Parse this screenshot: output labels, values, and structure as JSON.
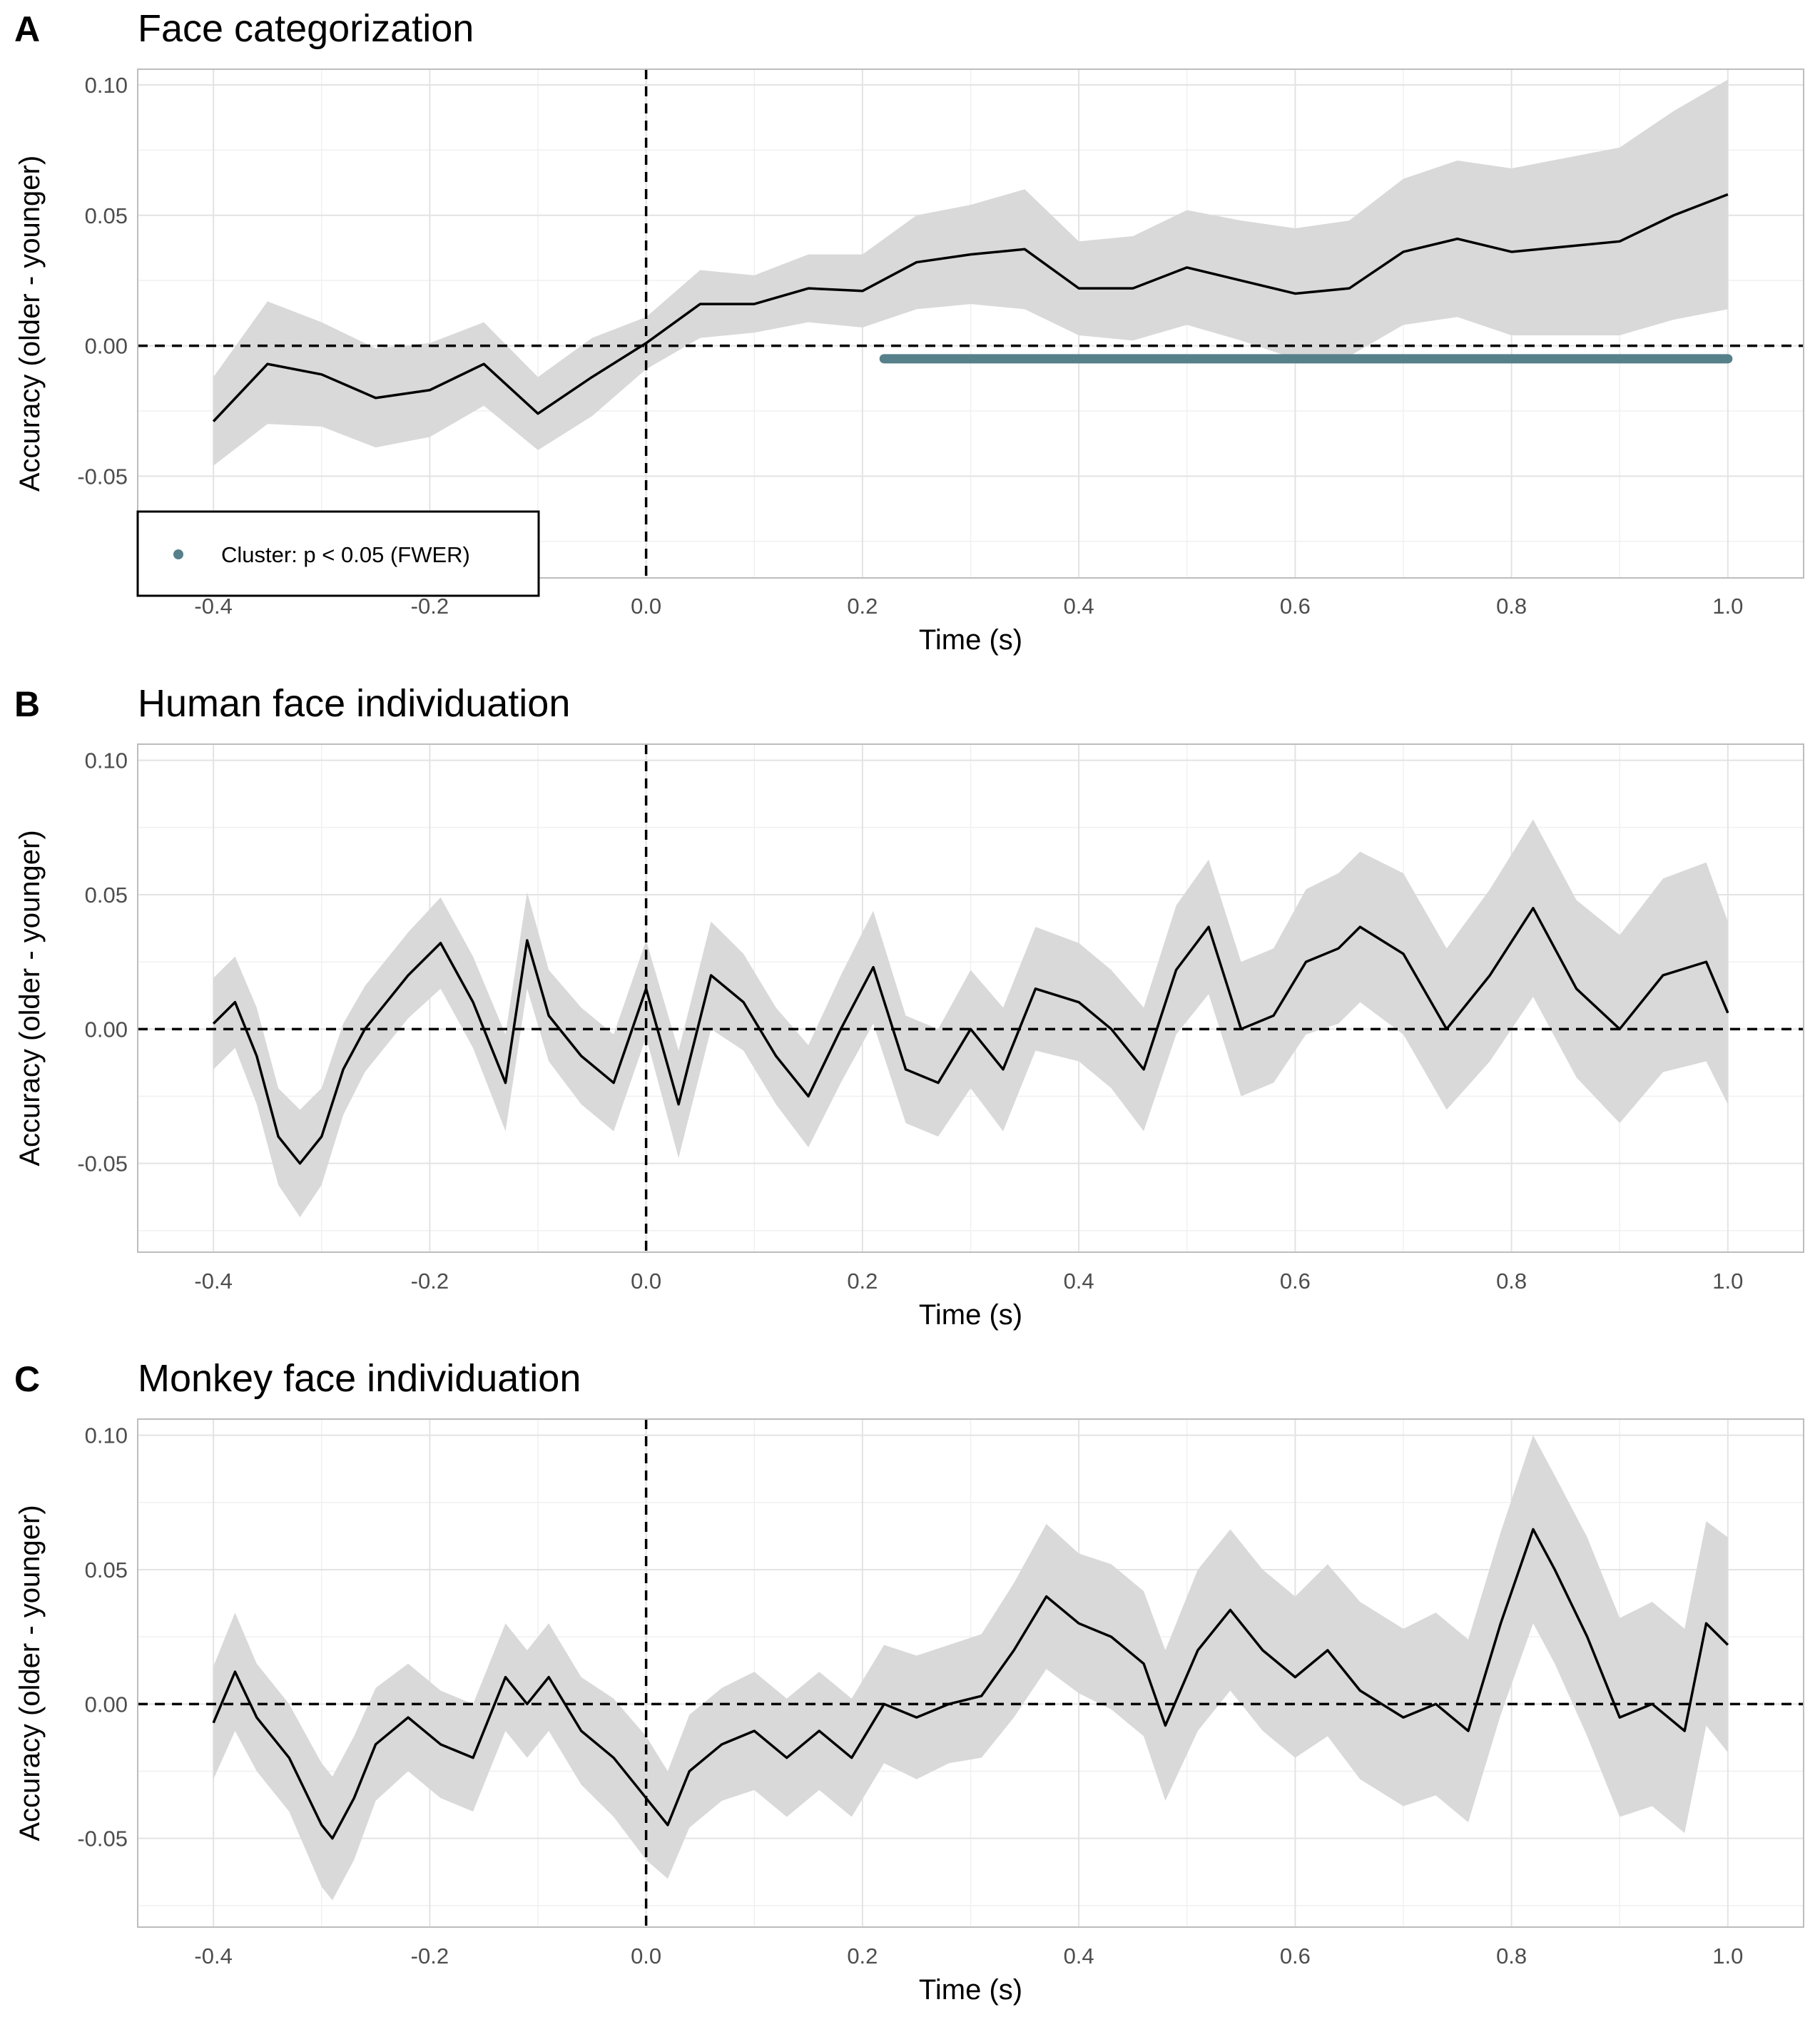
{
  "chart_data": [
    {
      "type": "line",
      "panel_label": "A",
      "title": "Face categorization",
      "xlabel": "Time (s)",
      "ylabel": "Accuracy (older - younger)",
      "xlim": [
        -0.47,
        1.07
      ],
      "ylim": [
        -0.089,
        0.106
      ],
      "xticks": [
        -0.4,
        -0.2,
        0.0,
        0.2,
        0.4,
        0.6,
        0.8,
        1.0
      ],
      "xtick_labels": [
        "-0.4",
        "-0.2",
        "0.0",
        "0.2",
        "0.4",
        "0.6",
        "0.8",
        "1.0"
      ],
      "yticks": [
        -0.05,
        0.0,
        0.05,
        0.1
      ],
      "ytick_labels": [
        "-0.05",
        "0.00",
        "0.05",
        "0.10"
      ],
      "grid": true,
      "reference_lines": {
        "x": 0.0,
        "y": 0.0
      },
      "series": [
        {
          "color": "#000000",
          "ribbon_color": "#d9d9d9",
          "x": [
            -0.4,
            -0.35,
            -0.3,
            -0.25,
            -0.2,
            -0.15,
            -0.1,
            -0.05,
            0.0,
            0.05,
            0.1,
            0.15,
            0.2,
            0.25,
            0.3,
            0.35,
            0.4,
            0.45,
            0.5,
            0.55,
            0.6,
            0.65,
            0.7,
            0.75,
            0.8,
            0.85,
            0.9,
            0.95,
            1.0
          ],
          "y": [
            -0.029,
            -0.007,
            -0.011,
            -0.02,
            -0.017,
            -0.007,
            -0.026,
            -0.012,
            0.001,
            0.016,
            0.016,
            0.022,
            0.021,
            0.032,
            0.035,
            0.037,
            0.022,
            0.022,
            0.03,
            0.025,
            0.02,
            0.022,
            0.036,
            0.041,
            0.036,
            0.038,
            0.04,
            0.05,
            0.058
          ],
          "lower": [
            -0.046,
            -0.03,
            -0.031,
            -0.039,
            -0.035,
            -0.023,
            -0.04,
            -0.027,
            -0.009,
            0.003,
            0.005,
            0.009,
            0.007,
            0.014,
            0.016,
            0.014,
            0.004,
            0.002,
            0.008,
            0.002,
            -0.005,
            -0.004,
            0.008,
            0.011,
            0.004,
            0.004,
            0.004,
            0.01,
            0.014
          ],
          "upper": [
            -0.012,
            0.017,
            0.009,
            -0.001,
            0.001,
            0.009,
            -0.012,
            0.003,
            0.011,
            0.029,
            0.027,
            0.035,
            0.035,
            0.05,
            0.054,
            0.06,
            0.04,
            0.042,
            0.052,
            0.048,
            0.045,
            0.048,
            0.064,
            0.071,
            0.068,
            0.072,
            0.076,
            0.09,
            0.102
          ]
        }
      ],
      "significance_cluster": {
        "x_start": 0.22,
        "x_end": 1.0,
        "y": -0.005,
        "color": "#56808a"
      },
      "legend": {
        "position": "bottom-left",
        "entries": [
          {
            "label": "Cluster: p < 0.05 (FWER)",
            "color": "#56808a",
            "marker": "point"
          }
        ]
      }
    },
    {
      "type": "line",
      "panel_label": "B",
      "title": "Human face individuation",
      "xlabel": "Time (s)",
      "ylabel": "Accuracy (older - younger)",
      "xlim": [
        -0.47,
        1.07
      ],
      "ylim": [
        -0.083,
        0.106
      ],
      "xticks": [
        -0.4,
        -0.2,
        0.0,
        0.2,
        0.4,
        0.6,
        0.8,
        1.0
      ],
      "xtick_labels": [
        "-0.4",
        "-0.2",
        "0.0",
        "0.2",
        "0.4",
        "0.6",
        "0.8",
        "1.0"
      ],
      "yticks": [
        -0.05,
        0.0,
        0.05,
        0.1
      ],
      "ytick_labels": [
        "-0.05",
        "0.00",
        "0.05",
        "0.10"
      ],
      "grid": true,
      "reference_lines": {
        "x": 0.0,
        "y": 0.0
      },
      "series": [
        {
          "color": "#000000",
          "ribbon_color": "#d9d9d9",
          "x": [
            -0.4,
            -0.38,
            -0.36,
            -0.34,
            -0.32,
            -0.3,
            -0.28,
            -0.26,
            -0.22,
            -0.19,
            -0.16,
            -0.13,
            -0.11,
            -0.09,
            -0.06,
            -0.03,
            0.0,
            0.03,
            0.06,
            0.09,
            0.12,
            0.15,
            0.18,
            0.21,
            0.24,
            0.27,
            0.3,
            0.33,
            0.36,
            0.4,
            0.43,
            0.46,
            0.49,
            0.52,
            0.55,
            0.58,
            0.61,
            0.64,
            0.66,
            0.7,
            0.74,
            0.78,
            0.82,
            0.86,
            0.9,
            0.94,
            0.98,
            1.0
          ],
          "y": [
            0.002,
            0.01,
            -0.01,
            -0.04,
            -0.05,
            -0.04,
            -0.015,
            0.0,
            0.02,
            0.032,
            0.01,
            -0.02,
            0.033,
            0.005,
            -0.01,
            -0.02,
            0.015,
            -0.028,
            0.02,
            0.01,
            -0.01,
            -0.025,
            0.0,
            0.023,
            -0.015,
            -0.02,
            0.0,
            -0.015,
            0.015,
            0.01,
            0.0,
            -0.015,
            0.022,
            0.038,
            0.0,
            0.005,
            0.025,
            0.03,
            0.038,
            0.028,
            0.0,
            0.02,
            0.045,
            0.015,
            0.0,
            0.02,
            0.025,
            0.006
          ],
          "lower": [
            -0.015,
            -0.007,
            -0.028,
            -0.058,
            -0.07,
            -0.058,
            -0.032,
            -0.016,
            0.004,
            0.015,
            -0.007,
            -0.038,
            0.015,
            -0.012,
            -0.028,
            -0.038,
            -0.003,
            -0.048,
            0.0,
            -0.008,
            -0.028,
            -0.044,
            -0.02,
            0.002,
            -0.035,
            -0.04,
            -0.022,
            -0.038,
            -0.008,
            -0.012,
            -0.022,
            -0.038,
            -0.002,
            0.013,
            -0.025,
            -0.02,
            -0.002,
            0.002,
            0.01,
            -0.002,
            -0.03,
            -0.012,
            0.012,
            -0.018,
            -0.035,
            -0.016,
            -0.012,
            -0.028
          ],
          "upper": [
            0.019,
            0.027,
            0.008,
            -0.022,
            -0.03,
            -0.022,
            0.002,
            0.016,
            0.036,
            0.049,
            0.027,
            -0.002,
            0.051,
            0.022,
            0.008,
            -0.002,
            0.033,
            -0.008,
            0.04,
            0.028,
            0.008,
            -0.006,
            0.02,
            0.044,
            0.005,
            0.0,
            0.022,
            0.008,
            0.038,
            0.032,
            0.022,
            0.008,
            0.046,
            0.063,
            0.025,
            0.03,
            0.052,
            0.058,
            0.066,
            0.058,
            0.03,
            0.052,
            0.078,
            0.048,
            0.035,
            0.056,
            0.062,
            0.04
          ]
        }
      ]
    },
    {
      "type": "line",
      "panel_label": "C",
      "title": "Monkey face individuation",
      "xlabel": "Time (s)",
      "ylabel": "Accuracy (older - younger)",
      "xlim": [
        -0.47,
        1.07
      ],
      "ylim": [
        -0.083,
        0.106
      ],
      "xticks": [
        -0.4,
        -0.2,
        0.0,
        0.2,
        0.4,
        0.6,
        0.8,
        1.0
      ],
      "xtick_labels": [
        "-0.4",
        "-0.2",
        "0.0",
        "0.2",
        "0.4",
        "0.6",
        "0.8",
        "1.0"
      ],
      "yticks": [
        -0.05,
        0.0,
        0.05,
        0.1
      ],
      "ytick_labels": [
        "-0.05",
        "0.00",
        "0.05",
        "0.10"
      ],
      "grid": true,
      "reference_lines": {
        "x": 0.0,
        "y": 0.0
      },
      "series": [
        {
          "color": "#000000",
          "ribbon_color": "#d9d9d9",
          "x": [
            -0.4,
            -0.38,
            -0.36,
            -0.33,
            -0.3,
            -0.29,
            -0.27,
            -0.25,
            -0.22,
            -0.19,
            -0.16,
            -0.13,
            -0.11,
            -0.09,
            -0.06,
            -0.03,
            0.0,
            0.02,
            0.04,
            0.07,
            0.1,
            0.13,
            0.16,
            0.19,
            0.22,
            0.25,
            0.28,
            0.31,
            0.34,
            0.37,
            0.4,
            0.43,
            0.46,
            0.48,
            0.51,
            0.54,
            0.57,
            0.6,
            0.63,
            0.66,
            0.7,
            0.73,
            0.76,
            0.79,
            0.82,
            0.84,
            0.87,
            0.9,
            0.93,
            0.96,
            0.98,
            1.0
          ],
          "y": [
            -0.007,
            0.012,
            -0.005,
            -0.02,
            -0.045,
            -0.05,
            -0.035,
            -0.015,
            -0.005,
            -0.015,
            -0.02,
            0.01,
            0.0,
            0.01,
            -0.01,
            -0.02,
            -0.035,
            -0.045,
            -0.025,
            -0.015,
            -0.01,
            -0.02,
            -0.01,
            -0.02,
            0.0,
            -0.005,
            0.0,
            0.003,
            0.02,
            0.04,
            0.03,
            0.025,
            0.015,
            -0.008,
            0.02,
            0.035,
            0.02,
            0.01,
            0.02,
            0.005,
            -0.005,
            0.0,
            -0.01,
            0.03,
            0.065,
            0.05,
            0.025,
            -0.005,
            0.0,
            -0.01,
            0.03,
            0.022
          ],
          "lower": [
            -0.028,
            -0.01,
            -0.025,
            -0.04,
            -0.068,
            -0.073,
            -0.058,
            -0.036,
            -0.025,
            -0.035,
            -0.04,
            -0.01,
            -0.02,
            -0.01,
            -0.03,
            -0.042,
            -0.058,
            -0.065,
            -0.046,
            -0.036,
            -0.032,
            -0.042,
            -0.032,
            -0.042,
            -0.022,
            -0.028,
            -0.022,
            -0.02,
            -0.005,
            0.013,
            0.004,
            -0.002,
            -0.012,
            -0.036,
            -0.01,
            0.005,
            -0.01,
            -0.02,
            -0.012,
            -0.028,
            -0.038,
            -0.034,
            -0.044,
            -0.004,
            0.03,
            0.015,
            -0.012,
            -0.042,
            -0.038,
            -0.048,
            -0.008,
            -0.018
          ],
          "upper": [
            0.014,
            0.034,
            0.015,
            0.0,
            -0.022,
            -0.027,
            -0.012,
            0.006,
            0.015,
            0.005,
            0.0,
            0.03,
            0.02,
            0.03,
            0.01,
            0.002,
            -0.012,
            -0.025,
            -0.004,
            0.006,
            0.012,
            0.002,
            0.012,
            0.002,
            0.022,
            0.018,
            0.022,
            0.026,
            0.045,
            0.067,
            0.056,
            0.052,
            0.042,
            0.02,
            0.05,
            0.065,
            0.05,
            0.04,
            0.052,
            0.038,
            0.028,
            0.034,
            0.024,
            0.064,
            0.1,
            0.085,
            0.062,
            0.032,
            0.038,
            0.028,
            0.068,
            0.062
          ]
        }
      ]
    }
  ]
}
